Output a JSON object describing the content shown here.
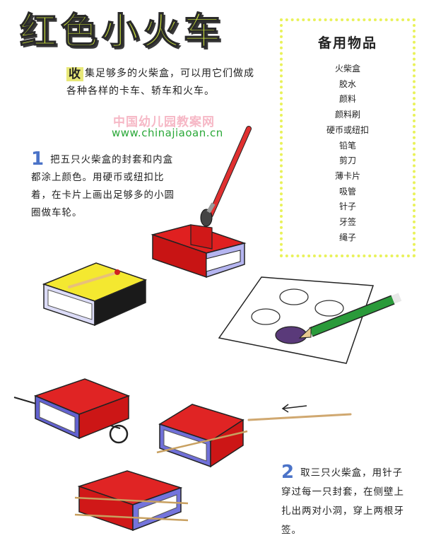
{
  "title": "红色小火车",
  "intro": {
    "drop_cap": "收",
    "text": "集足够多的火柴盒，可以用它们做成各种各样的卡车、轿车和火车。"
  },
  "watermark": {
    "line1": "中国幼儿园教案网",
    "line2": "www.chinajiaoan.cn"
  },
  "supplies": {
    "heading": "备用物品",
    "items": [
      "火柴盒",
      "胶水",
      "颜料",
      "颜料刷",
      "硬币或纽扣",
      "铅笔",
      "剪刀",
      "薄卡片",
      "吸管",
      "针子",
      "牙签",
      "绳子"
    ]
  },
  "step1": {
    "number": "1",
    "text": "把五只火柴盒的封套和内盒都涂上颜色。用硬币或纽扣比着，在卡片上画出足够多的小圆圈做车轮。"
  },
  "step2": {
    "number": "2",
    "lines": [
      "取三只火柴盒，用针子",
      "穿过每一只封套，在侧壁上",
      "扎出两对小洞，穿上两根牙",
      "签。"
    ]
  },
  "colors": {
    "title_fill": "#d4ec3c",
    "box_red": "#d01818",
    "box_blue": "#6a6ad8",
    "number_blue": "#4b73c8",
    "border_yellow": "#e9f25a"
  }
}
